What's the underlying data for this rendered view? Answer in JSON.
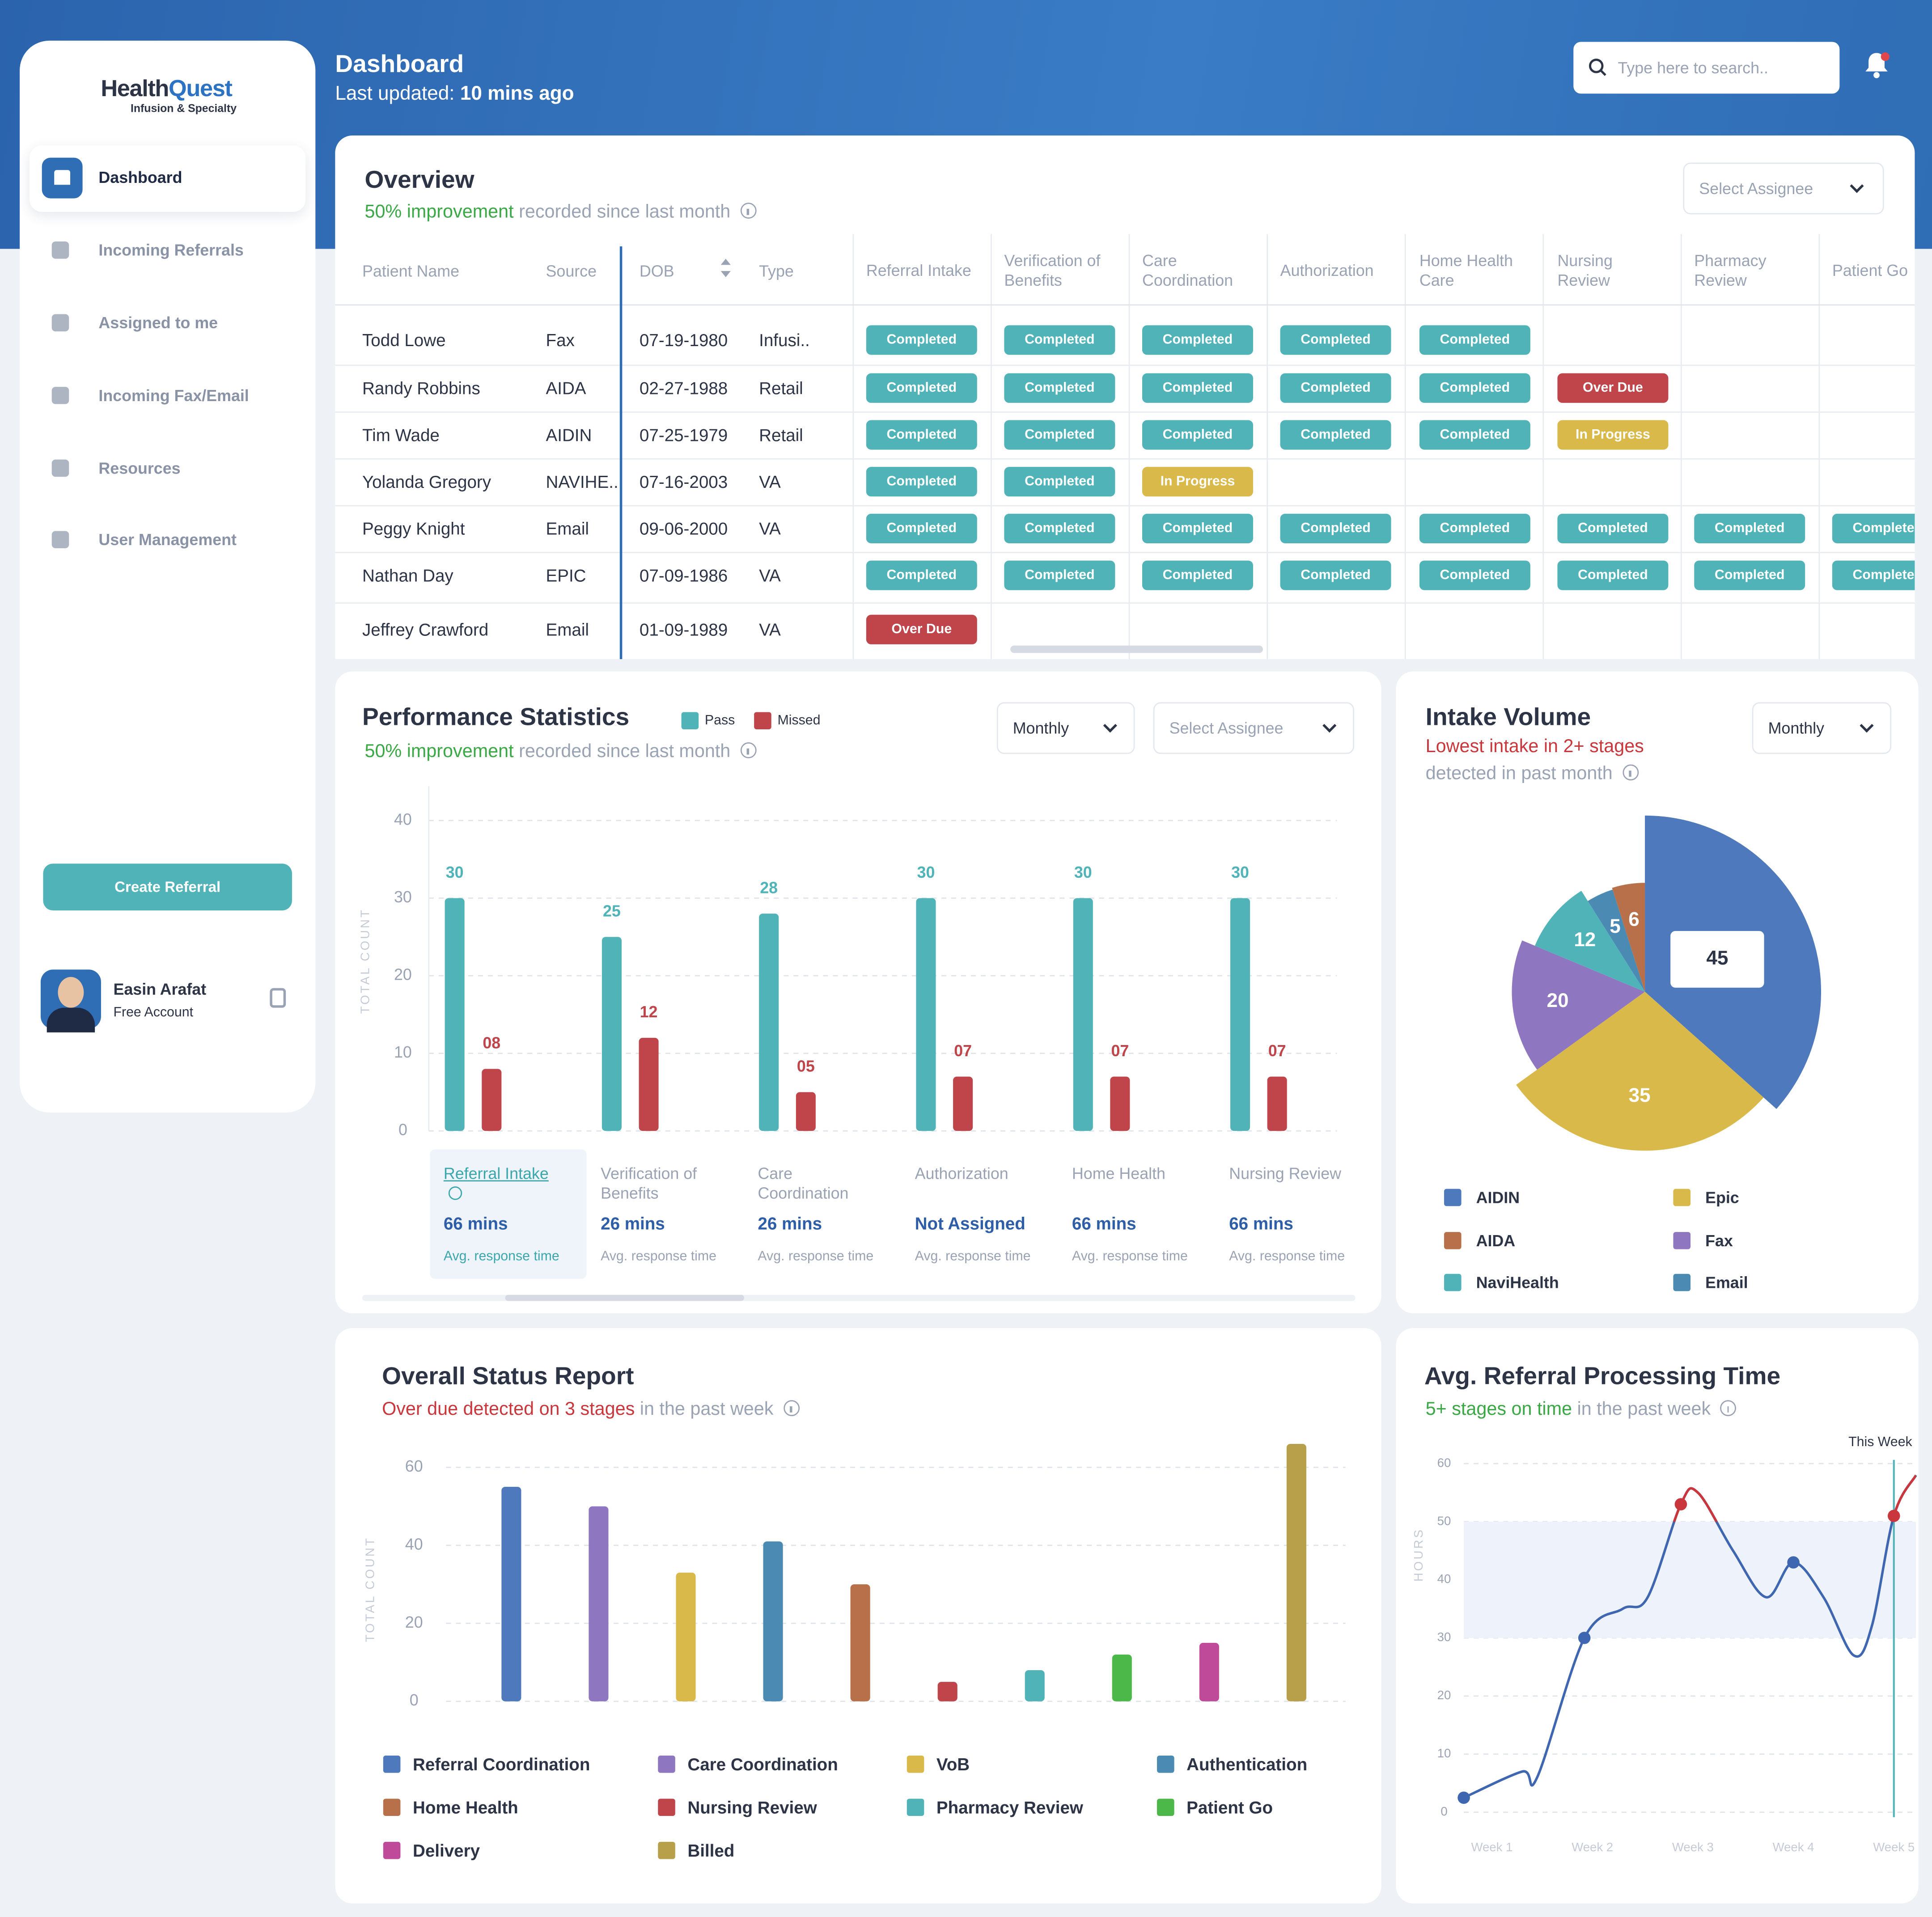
{
  "header": {
    "title": "Dashboard",
    "updated_label": "Last updated:",
    "updated_value": "10 mins ago",
    "search_placeholder": "Type here to search.."
  },
  "sidebar": {
    "logo_a": "Health",
    "logo_b": "Quest",
    "logo_tagline": "Infusion & Specialty",
    "nav": [
      "Dashboard",
      "Incoming Referrals",
      "Assigned to me",
      "Incoming Fax/Email",
      "Resources",
      "User Management"
    ],
    "button": "Create Referral",
    "user_name": "Easin Arafat",
    "user_plan": "Free Account"
  },
  "overview": {
    "title": "Overview",
    "highlight": "50% improvement",
    "subtitle": "recorded since last month",
    "assignee": "Select Assignee",
    "columns": [
      "Patient Name",
      "Source",
      "DOB",
      "Type",
      "Referral Intake",
      "Verification of Benefits",
      "Care Coordination",
      "Authorization",
      "Home Health Care",
      "Nursing Review",
      "Pharmacy Review",
      "Patient Go"
    ],
    "status_colors": {
      "Completed": "#4fb3b8",
      "Over Due": "#c0454a",
      "In Progress": "#d9b94a"
    },
    "rows": [
      {
        "name": "Todd Lowe",
        "source": "Fax",
        "dob": "07-19-1980",
        "type": "Infusi..",
        "stages": [
          "Completed",
          "Completed",
          "Completed",
          "Completed",
          "Completed"
        ]
      },
      {
        "name": "Randy Robbins",
        "source": "AIDA",
        "dob": "02-27-1988",
        "type": "Retail",
        "stages": [
          "Completed",
          "Completed",
          "Completed",
          "Completed",
          "Completed",
          "Over Due"
        ]
      },
      {
        "name": "Tim Wade",
        "source": "AIDIN",
        "dob": "07-25-1979",
        "type": "Retail",
        "stages": [
          "Completed",
          "Completed",
          "Completed",
          "Completed",
          "Completed",
          "In Progress"
        ]
      },
      {
        "name": "Yolanda Gregory",
        "source": "NAVIHE..",
        "dob": "07-16-2003",
        "type": "VA",
        "stages": [
          "Completed",
          "Completed",
          "In Progress"
        ]
      },
      {
        "name": "Peggy Knight",
        "source": "Email",
        "dob": "09-06-2000",
        "type": "VA",
        "stages": [
          "Completed",
          "Completed",
          "Completed",
          "Completed",
          "Completed",
          "Completed",
          "Completed",
          "Completed"
        ]
      },
      {
        "name": "Nathan Day",
        "source": "EPIC",
        "dob": "07-09-1986",
        "type": "VA",
        "stages": [
          "Completed",
          "Completed",
          "Completed",
          "Completed",
          "Completed",
          "Completed",
          "Completed",
          "Completed"
        ]
      },
      {
        "name": "Jeffrey Crawford",
        "source": "Email",
        "dob": "01-09-1989",
        "type": "VA",
        "stages": [
          "Over Due"
        ]
      }
    ]
  },
  "chart_data": [
    {
      "type": "bar",
      "title": "Performance Statistics",
      "highlight": "50% improvement",
      "subtitle": "recorded since last month",
      "controls": [
        "Monthly",
        "Select Assignee"
      ],
      "ylabel": "TOTAL COUNT",
      "categories": [
        "Referral Intake",
        "Verification of Benefits",
        "Care Coordination",
        "Authorization",
        "Home Health",
        "Nursing Review"
      ],
      "series": [
        {
          "name": "Pass",
          "color": "#4fb3b8",
          "values": [
            30,
            25,
            28,
            30,
            30,
            30
          ]
        },
        {
          "name": "Missed",
          "color": "#c0454a",
          "values": [
            8,
            12,
            5,
            7,
            7,
            7
          ],
          "value_labels": [
            "08",
            "12",
            "05",
            "07",
            "07",
            "07"
          ]
        }
      ],
      "ylim": [
        0,
        40
      ],
      "yticks": [
        0,
        10,
        20,
        30,
        40
      ],
      "grid": true,
      "response_times": [
        "66 mins",
        "26 mins",
        "26 mins",
        "Not Assigned",
        "66 mins",
        "66 mins"
      ],
      "response_note": "Avg. response time"
    },
    {
      "type": "pie",
      "title": "Intake Volume",
      "highlight": "Lowest intake in 2+ stages",
      "subtitle": "detected in past month",
      "controls": [
        "Monthly"
      ],
      "categories": [
        "AIDIN",
        "Epic",
        "AIDA",
        "Fax",
        "NaviHealth",
        "Email"
      ],
      "values": [
        45,
        35,
        6,
        20,
        12,
        5
      ],
      "colors": [
        "#4f79bd",
        "#d9b94a",
        "#b8704a",
        "#8f76c0",
        "#4fb3b8",
        "#4a8ab3"
      ]
    },
    {
      "type": "bar",
      "title": "Overall Status Report",
      "highlight": "Over due detected on 3 stages",
      "subtitle": "in the past week",
      "ylabel": "TOTAL COUNT",
      "categories": [
        "Referral Coordination",
        "Care Coordination",
        "VoB",
        "Authentication",
        "Home Health",
        "Nursing Review",
        "Pharmacy Review",
        "Patient Go",
        "Delivery",
        "Billed"
      ],
      "values": [
        55,
        50,
        33,
        41,
        30,
        5,
        8,
        12,
        15,
        66
      ],
      "colors": [
        "#4f79bd",
        "#8f76c0",
        "#d9b94a",
        "#4a8ab3",
        "#b8704a",
        "#c0454a",
        "#4fb3b8",
        "#4cb84a",
        "#c04a9a",
        "#b8a04a"
      ],
      "ylim": [
        0,
        66
      ],
      "yticks": [
        0,
        20,
        40,
        60
      ],
      "grid": true
    },
    {
      "type": "line",
      "title": "Avg. Referral Processing Time",
      "highlight": "5+ stages on time",
      "subtitle": "in the past week",
      "ylabel": "HOURS",
      "x": [
        0.72,
        1.3,
        1.45,
        1.92,
        2.3,
        2.55,
        2.88,
        3.05,
        3.4,
        3.73,
        4.0,
        4.3,
        4.6,
        4.78,
        5.0,
        5.22
      ],
      "values": [
        2.5,
        7,
        6,
        30,
        35,
        37,
        53,
        55,
        45,
        37,
        43,
        37,
        27,
        32,
        51,
        58
      ],
      "color": "#3f66b0",
      "alert_color": "#c9373c",
      "band": [
        30,
        50
      ],
      "xlim": [
        0.72,
        5.22
      ],
      "xticks": [
        {
          "value": 1,
          "label": "Week 1"
        },
        {
          "value": 2,
          "label": "Week 2"
        },
        {
          "value": 3,
          "label": "Week 3"
        },
        {
          "value": 4,
          "label": "Week 4"
        },
        {
          "value": 5,
          "label": "Week 5"
        }
      ],
      "ylim": [
        0,
        60
      ],
      "yticks": [
        0,
        10,
        20,
        30,
        40,
        50,
        60
      ],
      "grid": true,
      "annotation": {
        "text": "This Week",
        "x": 5
      }
    }
  ]
}
